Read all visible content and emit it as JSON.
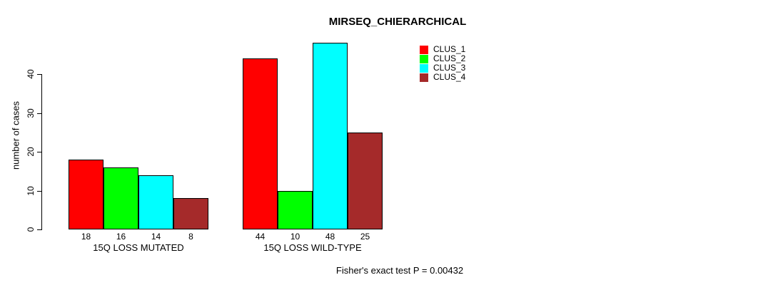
{
  "chart_data": {
    "type": "bar",
    "title": "MIRSEQ_CHIERARCHICAL",
    "ylabel": "number of cases",
    "xlabel": "",
    "yticks": [
      0,
      10,
      20,
      30,
      40
    ],
    "ylim": [
      0,
      48
    ],
    "grid": false,
    "bar_value_labels": true,
    "legend_position": "top-right",
    "categories": [
      "15Q LOSS MUTATED",
      "15Q LOSS WILD-TYPE"
    ],
    "series": [
      {
        "name": "CLUS_1",
        "color": "#FF0000",
        "values": [
          18,
          44
        ]
      },
      {
        "name": "CLUS_2",
        "color": "#00FF00",
        "values": [
          16,
          10
        ]
      },
      {
        "name": "CLUS_3",
        "color": "#00FFFF",
        "values": [
          14,
          48
        ]
      },
      {
        "name": "CLUS_4",
        "color": "#A52A2A",
        "values": [
          8,
          25
        ]
      }
    ],
    "annotation": "Fisher's exact test P = 0.00432"
  },
  "colors": {
    "background": "#FFFFFF",
    "axis": "#000000",
    "text": "#000000"
  }
}
